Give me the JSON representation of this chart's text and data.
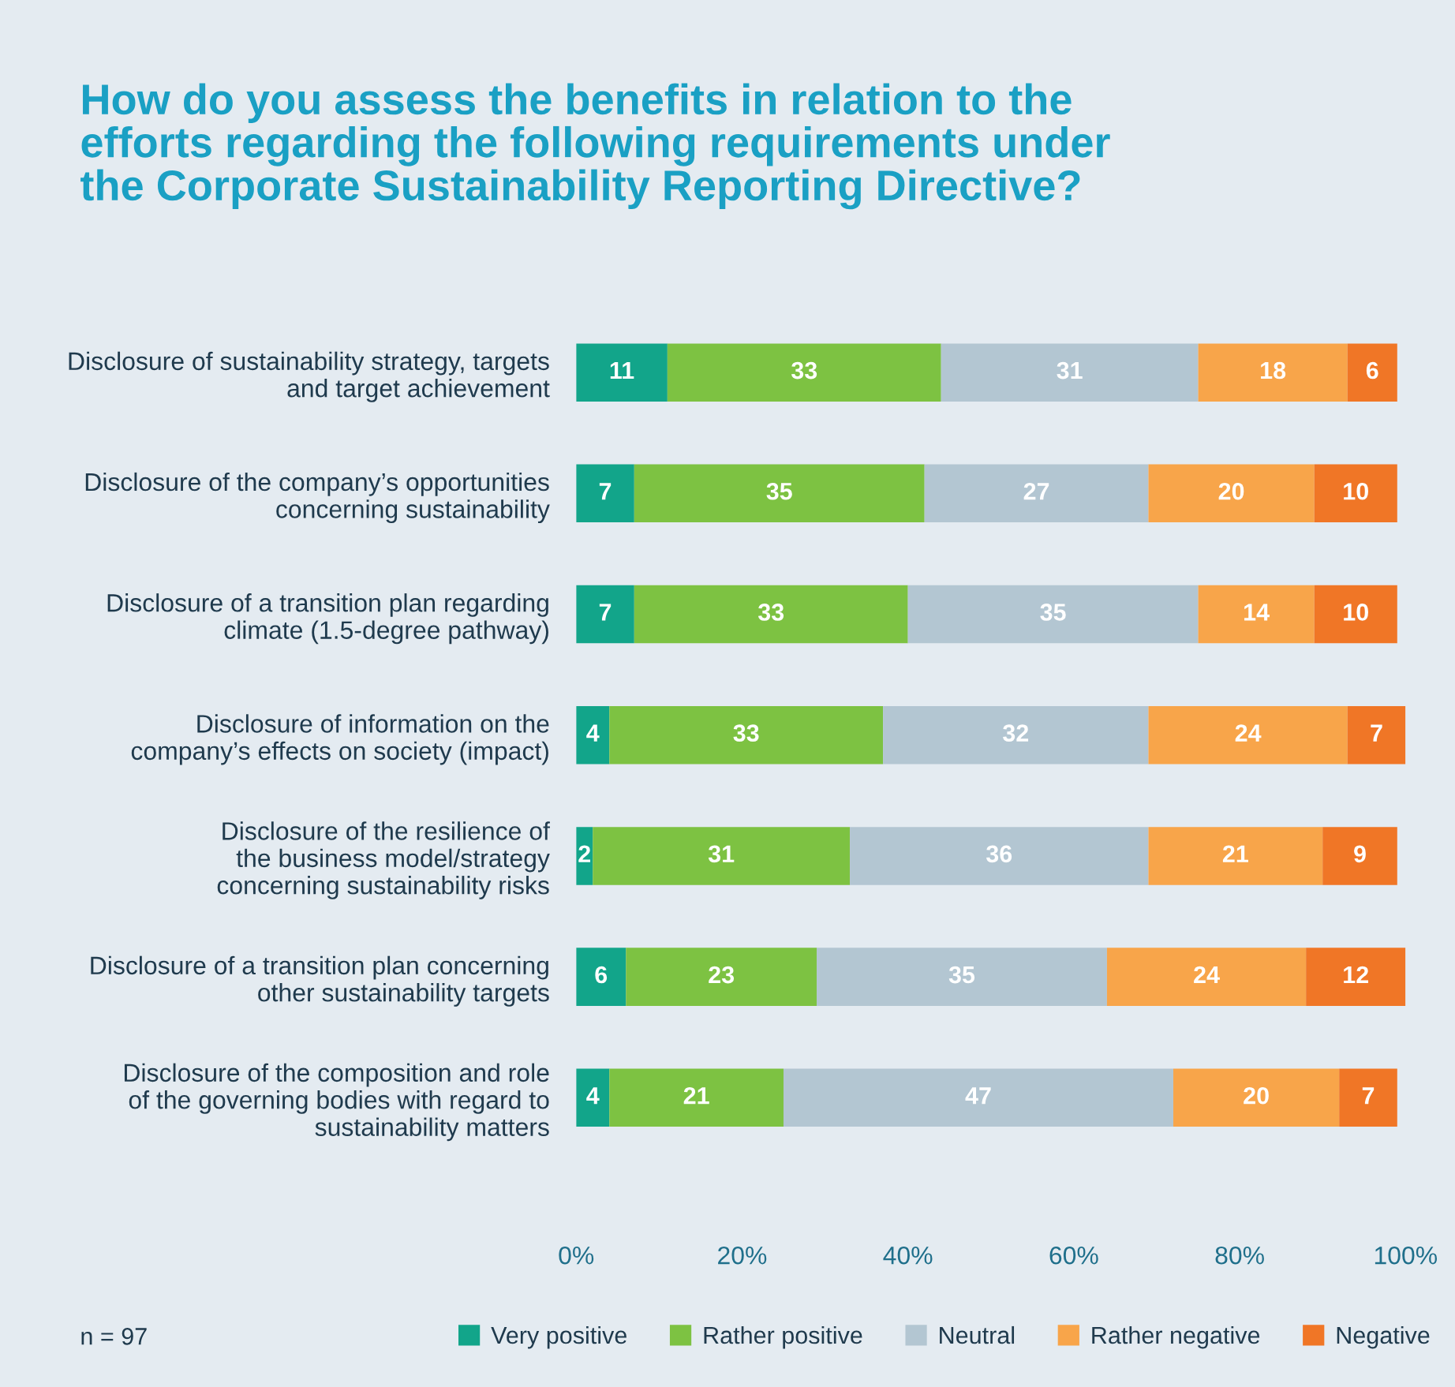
{
  "chart_data": {
    "type": "bar",
    "orientation": "horizontal",
    "stacked": true,
    "title": "How do you assess the benefits in relation to the\nefforts regarding the following requirements under\nthe Corporate Sustainability Reporting Directive?",
    "categories": [
      "Disclosure of sustainability strategy, targets\nand target achievement",
      "Disclosure of the company’s opportunities\nconcerning sustainability",
      "Disclosure of a transition plan regarding\nclimate (1.5-degree pathway)",
      "Disclosure of information on the\ncompany’s effects on society (impact)",
      "Disclosure of the resilience of\nthe business model/strategy\nconcerning sustainability risks",
      "Disclosure of a transition plan concerning\nother sustainability targets",
      "Disclosure of the composition and role\nof the governing bodies with regard to\nsustainability matters"
    ],
    "series": [
      {
        "name": "Very positive",
        "color": "#12a58a",
        "values": [
          11,
          7,
          7,
          4,
          2,
          6,
          4
        ]
      },
      {
        "name": "Rather positive",
        "color": "#7dc242",
        "values": [
          33,
          35,
          33,
          33,
          31,
          23,
          21
        ]
      },
      {
        "name": "Neutral",
        "color": "#b3c6d2",
        "values": [
          31,
          27,
          35,
          32,
          36,
          35,
          47
        ]
      },
      {
        "name": "Rather negative",
        "color": "#f8a54a",
        "values": [
          18,
          20,
          14,
          24,
          21,
          24,
          20
        ]
      },
      {
        "name": "Negative",
        "color": "#f07626",
        "values": [
          6,
          10,
          10,
          7,
          9,
          12,
          7
        ]
      }
    ],
    "xlim": [
      0,
      100
    ],
    "xticks": [
      {
        "value": 0,
        "label": "0%"
      },
      {
        "value": 20,
        "label": "20%"
      },
      {
        "value": 40,
        "label": "40%"
      },
      {
        "value": 60,
        "label": "60%"
      },
      {
        "value": 80,
        "label": "80%"
      },
      {
        "value": 100,
        "label": "100%"
      }
    ],
    "data_labels": true,
    "grid": false,
    "legend": "bottom",
    "annotations": [
      "n = 97"
    ]
  }
}
